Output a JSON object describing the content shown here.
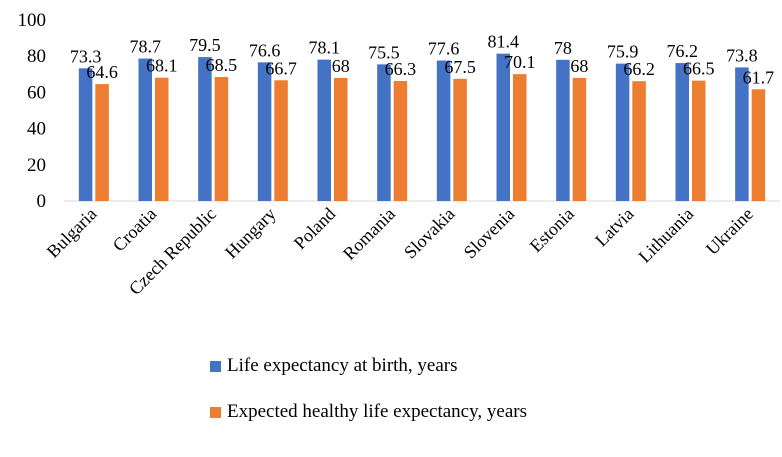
{
  "chart_data": {
    "type": "bar",
    "categories": [
      "Bulgaria",
      "Croatia",
      "Czech Republic",
      "Hungary",
      "Poland",
      "Romania",
      "Slovakia",
      "Slovenia",
      "Estonia",
      "Latvia",
      "Lithuania",
      "Ukraine"
    ],
    "series": [
      {
        "name": "Life expectancy at birth, years",
        "color": "#4472c4",
        "values": [
          73.3,
          78.7,
          79.5,
          76.6,
          78.1,
          75.5,
          77.6,
          81.4,
          78,
          75.9,
          76.2,
          73.8
        ]
      },
      {
        "name": "Expected healthy life expectancy, years",
        "color": "#ed7d31",
        "values": [
          64.6,
          68.1,
          68.5,
          66.7,
          68,
          66.3,
          67.5,
          70.1,
          68,
          66.2,
          66.5,
          61.7
        ]
      }
    ],
    "ylim": [
      0,
      100
    ],
    "yticks": [
      0,
      20,
      40,
      60,
      80,
      100
    ],
    "grid": false,
    "legend": "bottom"
  }
}
